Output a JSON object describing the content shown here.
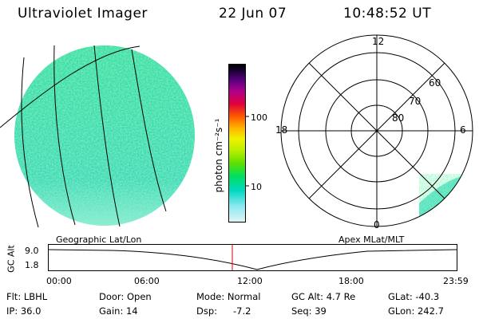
{
  "header": {
    "instrument": "Ultraviolet Imager",
    "date": "22 Jun 07",
    "time": "10:48:52 UT"
  },
  "colorbar": {
    "unit_label": "photon cm⁻²s⁻¹",
    "ticks": [
      "100",
      "10"
    ]
  },
  "polar_plot": {
    "mlt_labels": [
      "12",
      "18",
      "6",
      "0"
    ],
    "lat_labels": [
      "60",
      "70",
      "80"
    ]
  },
  "projection_labels": {
    "left": "Geographic Lat/Lon",
    "right": "Apex MLat/MLT"
  },
  "altitude_plot": {
    "ylabel": "GC Alt",
    "yticks": [
      "9.0",
      "1.8"
    ],
    "xticks": [
      "00:00",
      "06:00",
      "12:00",
      "18:00",
      "23:59"
    ],
    "marker_time": "10:48:52"
  },
  "status": {
    "flt": "Flt: LBHL",
    "ip": "IP: 36.0",
    "door": "Door: Open",
    "gain": "Gain: 14",
    "mode": "Mode: Normal",
    "dsp": "Dsp:",
    "dsp_value": "-7.2",
    "gc_alt": "GC Alt: 4.7 Re",
    "seq": "Seq: 39",
    "glat": "GLat: -40.3",
    "glon": "GLon: 242.7"
  }
}
